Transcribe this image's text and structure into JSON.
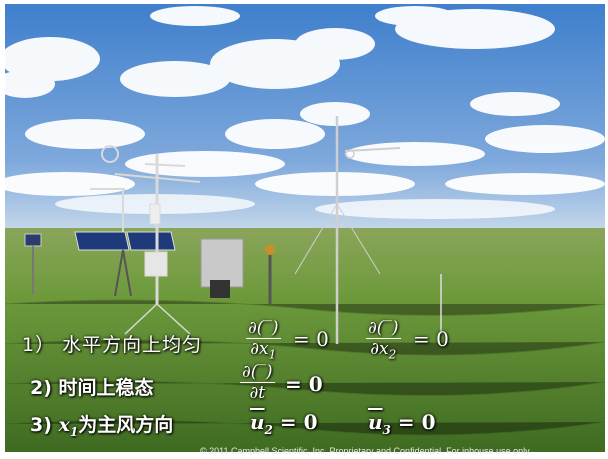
{
  "conditions": {
    "c1_label": "1） 水平方向上均匀",
    "c1_frac1_num": "∂(‾)",
    "c1_frac1_den_var": "∂x",
    "c1_frac1_den_sub": "1",
    "c1_eq1": "= 0",
    "c1_frac2_num": "∂(‾)",
    "c1_frac2_den_var": "∂x",
    "c1_frac2_den_sub": "2",
    "c1_eq2": "= 0",
    "c2_label": "2) 时间上稳态",
    "c2_frac_num": "∂(‾)",
    "c2_frac_den": "∂t",
    "c2_eq": "= 0",
    "c3_label_num": "3)",
    "c3_label_var": "x",
    "c3_label_sub": "1",
    "c3_label_text": "为主风方向",
    "c3_u2_var": "u",
    "c3_u2_sub": "2",
    "c3_u2_eq": "= 0",
    "c3_u3_var": "u",
    "c3_u3_sub": "3",
    "c3_u3_eq": "= 0"
  },
  "footer": "© 2011 Campbell Scientific, Inc.   Proprietary and Confidential.   For inhouse use only.",
  "colors": {
    "sky_top": "#4a86cf",
    "sky_bottom": "#b6cfe8",
    "grass": "#5f8a34",
    "text": "#ffffff"
  }
}
